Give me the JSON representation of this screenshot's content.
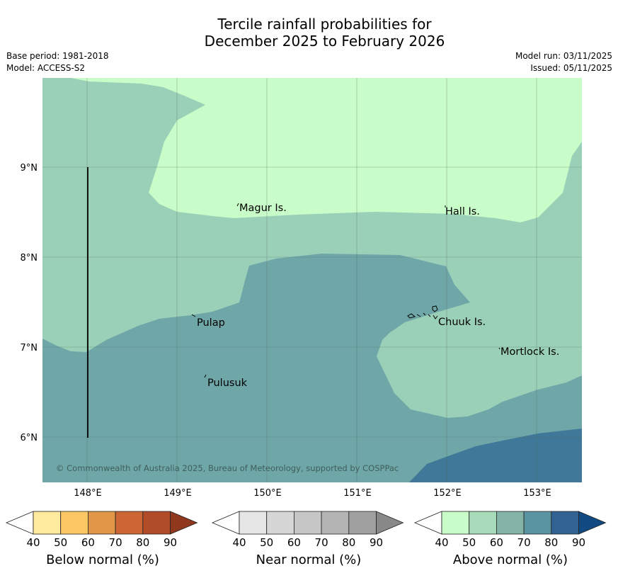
{
  "title": {
    "line1": "Tercile rainfall probabilities for",
    "line2": "December 2025 to February 2026"
  },
  "meta": {
    "base_period": "Base period: 1981-2018",
    "model": "Model: ACCESS-S2",
    "model_run": "Model run: 03/11/2025",
    "issued": "Issued: 05/11/2025"
  },
  "map": {
    "lon_ticks": [
      "148°E",
      "149°E",
      "150°E",
      "151°E",
      "152°E",
      "153°E"
    ],
    "lat_ticks": [
      "9°N",
      "8°N",
      "7°N",
      "6°N"
    ],
    "places": {
      "magur": "Magur Is.",
      "hall": "Hall Is.",
      "pulap": "Pulap",
      "chuuk": "Chuuk Is.",
      "mortlock": "Mortlock Is.",
      "pulusuk": "Pulusuk"
    },
    "copyright": "© Commonwealth of Australia 2025, Bureau of Meteorology, supported by COSPPac",
    "colors": {
      "above_50": "#c8fcc8",
      "above_60": "#9bd0b8",
      "above_70": "#6fa6a8",
      "above_80": "#3f7898"
    }
  },
  "legend": {
    "below": {
      "label": "Below normal (%)",
      "ticks": [
        "40",
        "50",
        "60",
        "70",
        "80",
        "90"
      ],
      "colors": [
        "#ffffff",
        "#ffeb9e",
        "#fcc864",
        "#e19648",
        "#cc6634",
        "#b04c28",
        "#90381e"
      ]
    },
    "near": {
      "label": "Near normal (%)",
      "ticks": [
        "40",
        "50",
        "60",
        "70",
        "80",
        "90"
      ],
      "colors": [
        "#ffffff",
        "#e6e6e6",
        "#d6d6d6",
        "#c6c6c6",
        "#b4b4b4",
        "#a0a0a0",
        "#888888"
      ]
    },
    "above": {
      "label": "Above normal (%)",
      "ticks": [
        "40",
        "50",
        "60",
        "70",
        "80",
        "90"
      ],
      "colors": [
        "#ffffff",
        "#c8fcc8",
        "#a6dab8",
        "#84b4a8",
        "#5a94a0",
        "#306294",
        "#114a80"
      ]
    }
  }
}
